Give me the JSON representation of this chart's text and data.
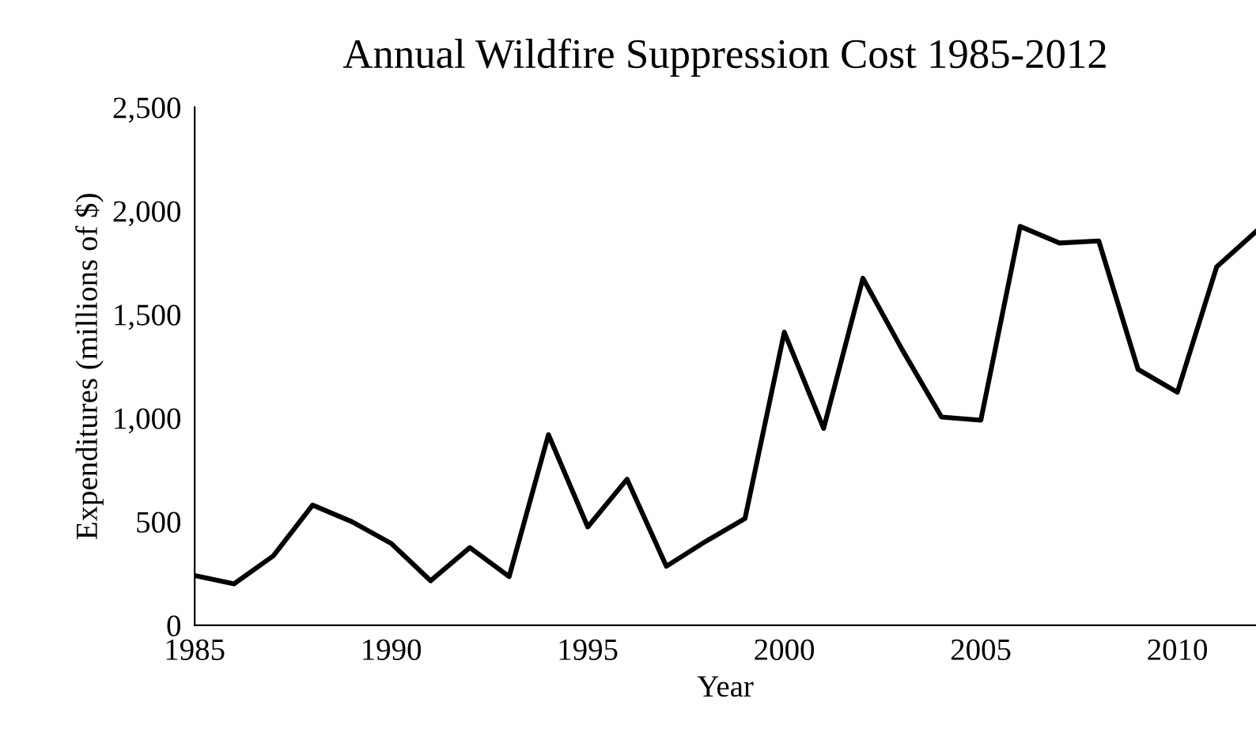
{
  "chart_data": {
    "type": "line",
    "title": "Annual Wildfire Suppression Cost 1985-2012",
    "xlabel": "Year",
    "ylabel": "Expenditures (millions of $)",
    "x": [
      1985,
      1986,
      1987,
      1988,
      1989,
      1990,
      1991,
      1992,
      1993,
      1994,
      1995,
      1996,
      1997,
      1998,
      1999,
      2000,
      2001,
      2002,
      2003,
      2004,
      2005,
      2006,
      2007,
      2008,
      2009,
      2010,
      2011,
      2012
    ],
    "series": [
      {
        "color": "#000000",
        "values": [
          240,
          200,
          335,
          580,
          500,
          395,
          215,
          375,
          235,
          920,
          475,
          705,
          285,
          405,
          515,
          1415,
          950,
          1675,
          1330,
          1005,
          990,
          1925,
          1845,
          1855,
          1235,
          1125,
          1730,
          1900
        ]
      }
    ],
    "xlim": [
      1985,
      2012
    ],
    "xticks": [
      1985,
      1990,
      1995,
      2000,
      2005,
      2010
    ],
    "ylim": [
      0,
      2500
    ],
    "yticks": [
      {
        "value": 0,
        "label": "0"
      },
      {
        "value": 500,
        "label": "500"
      },
      {
        "value": 1000,
        "label": "1,000"
      },
      {
        "value": 1500,
        "label": "1,500"
      },
      {
        "value": 2000,
        "label": "2,000"
      },
      {
        "value": 2500,
        "label": "2,500"
      }
    ],
    "grid": false,
    "legend": false,
    "marker": "none",
    "line_style": "solid"
  }
}
